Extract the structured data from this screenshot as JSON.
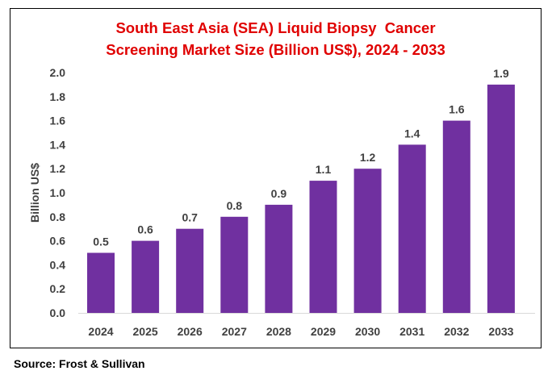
{
  "chart_data": {
    "type": "bar",
    "title_lines": [
      "South East Asia (SEA) Liquid Biopsy  Cancer",
      "Screening Market Size (Billion US$), 2024 - 2033"
    ],
    "xlabel": "",
    "ylabel": "Billion US$",
    "categories": [
      "2024",
      "2025",
      "2026",
      "2027",
      "2028",
      "2029",
      "2030",
      "2031",
      "2032",
      "2033"
    ],
    "values": [
      0.5,
      0.6,
      0.7,
      0.8,
      0.9,
      1.1,
      1.2,
      1.4,
      1.6,
      1.9
    ],
    "data_labels": [
      "0.5",
      "0.6",
      "0.7",
      "0.8",
      "0.9",
      "1.1",
      "1.2",
      "1.4",
      "1.6",
      "1.9"
    ],
    "ylim": [
      0,
      2.0
    ],
    "yticks": [
      "0.0",
      "0.2",
      "0.4",
      "0.6",
      "0.8",
      "1.0",
      "1.2",
      "1.4",
      "1.6",
      "1.8",
      "2.0"
    ],
    "grid": false,
    "legend": "none",
    "bar_color": "#7030a0",
    "title_color": "#e00000"
  },
  "source": "Source: Frost & Sullivan"
}
